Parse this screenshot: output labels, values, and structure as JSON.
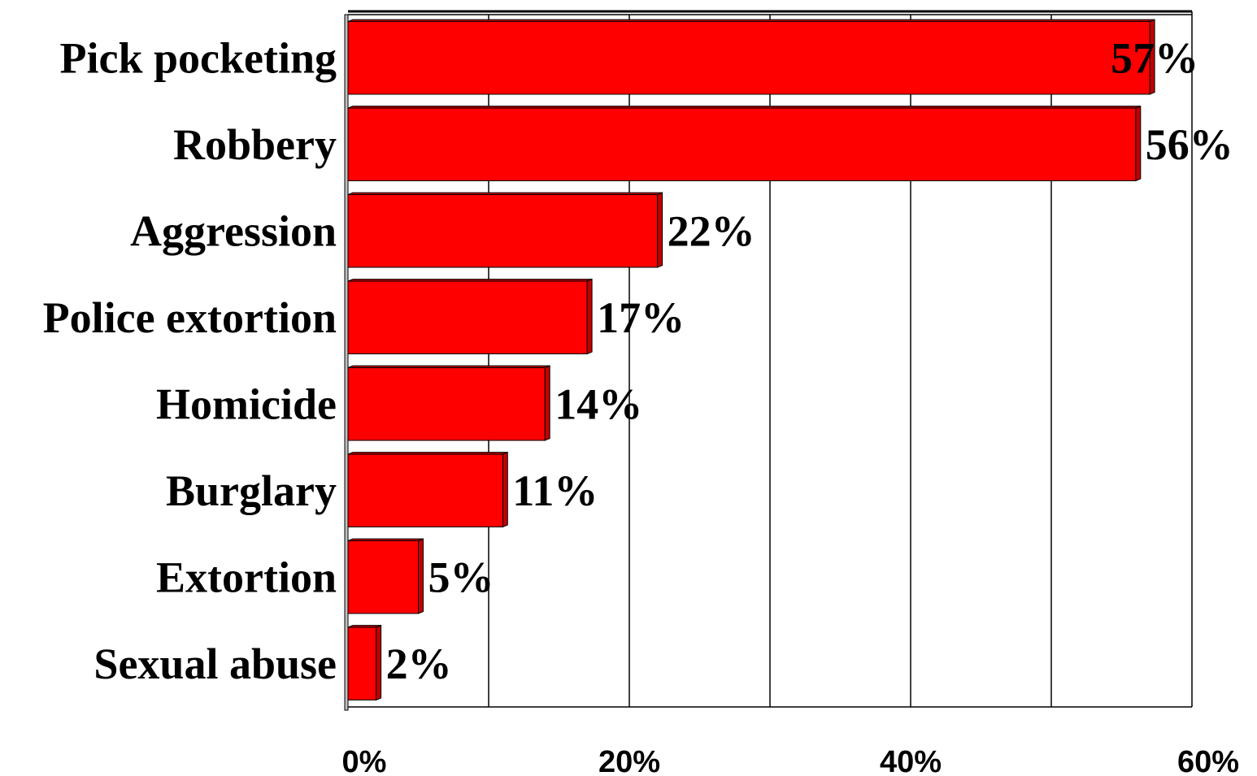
{
  "chart_data": {
    "type": "bar",
    "orientation": "horizontal",
    "categories": [
      "Pick pocketing",
      "Robbery",
      "Aggression",
      "Police extortion",
      "Homicide",
      "Burglary",
      "Extortion",
      "Sexual abuse"
    ],
    "values": [
      57,
      56,
      22,
      17,
      14,
      11,
      5,
      2
    ],
    "value_labels": [
      "57%",
      "56%",
      "22%",
      "17%",
      "14%",
      "11%",
      "5%",
      "2%"
    ],
    "xlim": [
      0,
      60
    ],
    "x_ticks": [
      0,
      20,
      40,
      60
    ],
    "x_tick_labels": [
      "0%",
      "20%",
      "40%",
      "60%"
    ],
    "grid": true,
    "legend": "none",
    "bar_color": "#ff0000",
    "bar_shade_color": "#c00000",
    "title": "",
    "xlabel": "",
    "ylabel": ""
  }
}
